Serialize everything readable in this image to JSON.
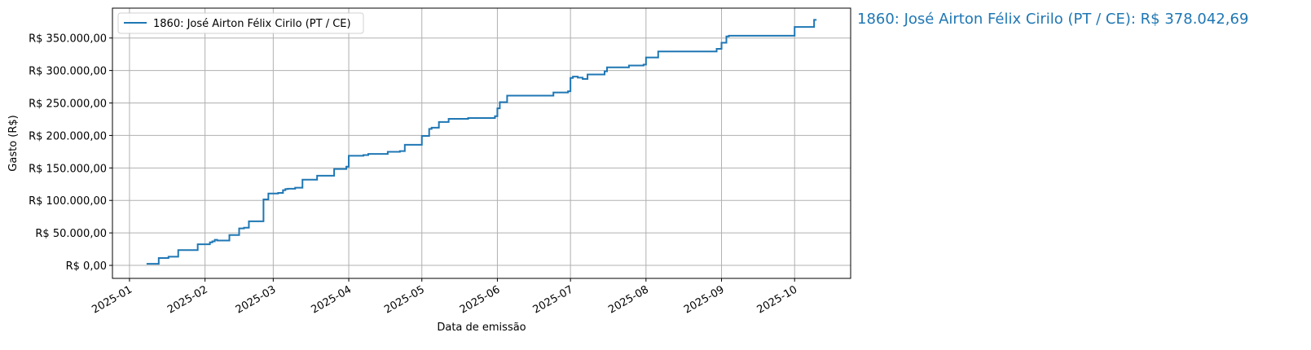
{
  "chart_data": {
    "type": "line",
    "step": "post",
    "title": "1860: José Airton Félix Cirilo (PT / CE): R$ 378.042,69",
    "xlabel": "Data de emissão",
    "ylabel": "Gasto (R$)",
    "xlim": [
      "2024-12-25",
      "2025-10-24"
    ],
    "ylim": [
      -20000,
      396000
    ],
    "grid": true,
    "legend_placement": "upper-left",
    "color": "#1f77b4",
    "x_ticks": [
      "2025-01",
      "2025-02",
      "2025-03",
      "2025-04",
      "2025-05",
      "2025-06",
      "2025-07",
      "2025-08",
      "2025-09",
      "2025-10"
    ],
    "y_ticks": [
      0,
      50000,
      100000,
      150000,
      200000,
      250000,
      300000,
      350000
    ],
    "y_tick_labels": [
      "R$ 0,00",
      "R$ 50.000,00",
      "R$ 100.000,00",
      "R$ 150.000,00",
      "R$ 200.000,00",
      "R$ 250.000,00",
      "R$ 300.000,00",
      "R$ 350.000,00"
    ],
    "series": [
      {
        "name": "1860: José Airton Félix Cirilo (PT / CE)",
        "x": [
          "2025-01-08",
          "2025-01-13",
          "2025-01-17",
          "2025-01-21",
          "2025-01-29",
          "2025-02-03",
          "2025-02-04",
          "2025-02-05",
          "2025-02-06",
          "2025-02-11",
          "2025-02-15",
          "2025-02-17",
          "2025-02-19",
          "2025-02-25",
          "2025-02-27",
          "2025-03-03",
          "2025-03-05",
          "2025-03-06",
          "2025-03-07",
          "2025-03-10",
          "2025-03-13",
          "2025-03-19",
          "2025-03-26",
          "2025-03-31",
          "2025-04-01",
          "2025-04-07",
          "2025-04-09",
          "2025-04-17",
          "2025-04-22",
          "2025-04-24",
          "2025-05-01",
          "2025-05-04",
          "2025-05-05",
          "2025-05-08",
          "2025-05-12",
          "2025-05-20",
          "2025-05-31",
          "2025-06-01",
          "2025-06-02",
          "2025-06-05",
          "2025-06-24",
          "2025-06-30",
          "2025-07-01",
          "2025-07-02",
          "2025-07-04",
          "2025-07-06",
          "2025-07-08",
          "2025-07-15",
          "2025-07-16",
          "2025-07-25",
          "2025-07-31",
          "2025-08-01",
          "2025-08-06",
          "2025-08-30",
          "2025-09-01",
          "2025-09-03",
          "2025-09-04",
          "2025-10-01",
          "2025-10-09",
          "2025-10-10"
        ],
        "y": [
          2400,
          11400,
          13400,
          23600,
          32500,
          35400,
          37000,
          39400,
          38200,
          46700,
          56900,
          58000,
          67900,
          101600,
          110600,
          111500,
          115800,
          117500,
          118000,
          119500,
          132000,
          138000,
          148400,
          152000,
          168700,
          169900,
          171600,
          174800,
          176000,
          185700,
          199200,
          210100,
          212000,
          220700,
          225600,
          226800,
          229600,
          241800,
          251200,
          261300,
          266200,
          268000,
          288600,
          290600,
          289000,
          287000,
          293900,
          298800,
          304900,
          307700,
          309000,
          320000,
          329300,
          333300,
          342700,
          352400,
          353600,
          367000,
          378042.69,
          378042.69
        ]
      }
    ]
  }
}
